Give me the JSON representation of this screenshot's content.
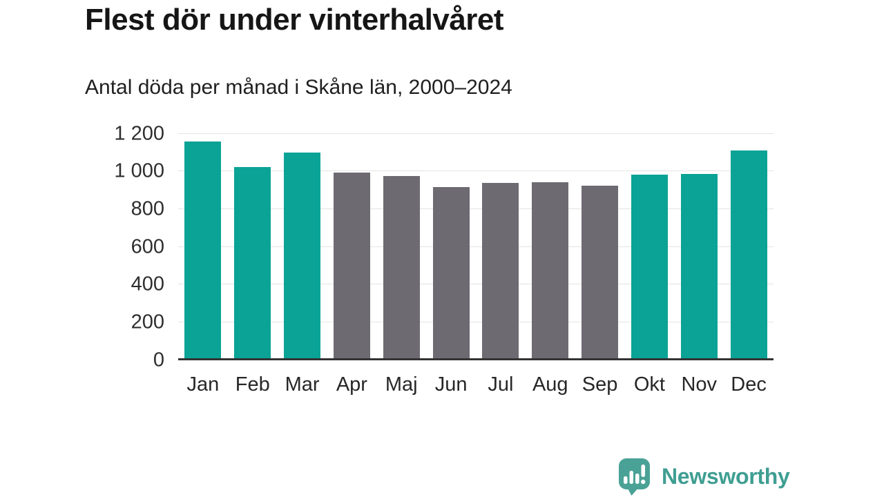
{
  "chart_data": {
    "type": "bar",
    "title": "Flest dör under vinterhalvåret",
    "subtitle": "Antal döda per månad i Skåne län, 2000–2024",
    "categories": [
      "Jan",
      "Feb",
      "Mar",
      "Apr",
      "Maj",
      "Jun",
      "Jul",
      "Aug",
      "Sep",
      "Okt",
      "Nov",
      "Dec"
    ],
    "values": [
      1156,
      1020,
      1096,
      992,
      972,
      915,
      937,
      940,
      922,
      979,
      986,
      1108
    ],
    "bar_colors": [
      "#0aa396",
      "#0aa396",
      "#0aa396",
      "#6e6a72",
      "#6e6a72",
      "#6e6a72",
      "#6e6a72",
      "#6e6a72",
      "#6e6a72",
      "#0aa396",
      "#0aa396",
      "#0aa396"
    ],
    "highlight_color": "#0aa396",
    "base_color": "#6e6a72",
    "xlabel": "",
    "ylabel": "",
    "ylim": [
      0,
      1200
    ],
    "yticks": [
      0,
      200,
      400,
      600,
      800,
      1000,
      1200
    ],
    "ytick_labels": [
      "0",
      "200",
      "400",
      "600",
      "800",
      "1 000",
      "1 200"
    ],
    "grid": true,
    "gridline_color": "#e3e3e3",
    "axis_line_color": "#333333",
    "legend": "none"
  },
  "branding": {
    "logo_text": "Newsworthy",
    "logo_color": "#4aa296",
    "logo_text_color": "#3f9e92",
    "logo_icon": "speech-bubble-bar-chart-icon"
  }
}
